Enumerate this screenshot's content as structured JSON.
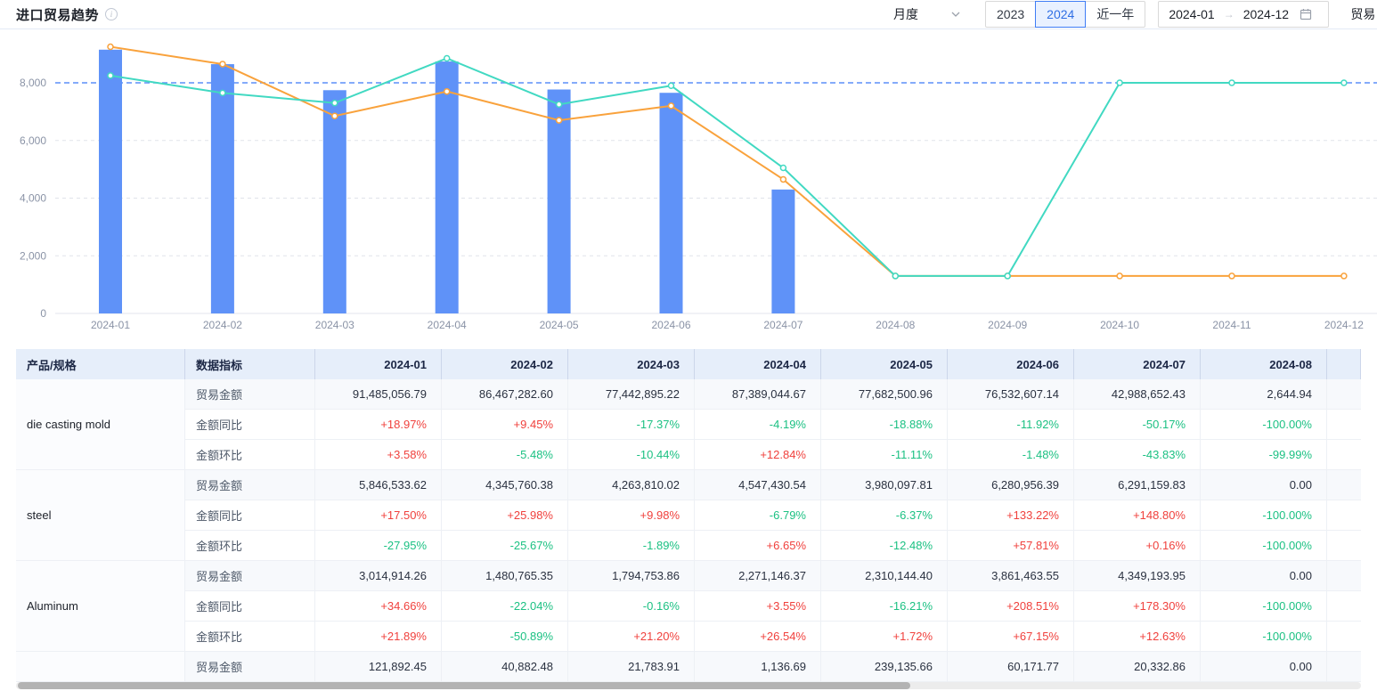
{
  "header": {
    "title": "进口贸易趋势",
    "period_select": {
      "value": "月度"
    },
    "year_buttons": [
      {
        "label": "2023",
        "selected": false
      },
      {
        "label": "2024",
        "selected": true
      },
      {
        "label": "近一年",
        "selected": false
      }
    ],
    "date_range": {
      "start": "2024-01",
      "separator": "→",
      "end": "2024-12"
    },
    "truncated_control": "贸易"
  },
  "chart_data": {
    "type": "bar+line",
    "x": [
      "2024-01",
      "2024-02",
      "2024-03",
      "2024-04",
      "2024-05",
      "2024-06",
      "2024-07",
      "2024-08",
      "2024-09",
      "2024-10",
      "2024-11",
      "2024-12"
    ],
    "series": [
      {
        "name": "bars",
        "type": "bar",
        "color": "#5f92f8",
        "values": [
          9149,
          8647,
          7744,
          8739,
          7768,
          7653,
          4299,
          0,
          0,
          0,
          0,
          0
        ]
      },
      {
        "name": "line_orange",
        "type": "line",
        "color": "#f9a23c",
        "values": [
          9250,
          8650,
          6850,
          7700,
          6700,
          7200,
          4650,
          1300,
          1300,
          1300,
          1300,
          1300
        ]
      },
      {
        "name": "line_teal",
        "type": "line",
        "color": "#41d9c2",
        "values": [
          8250,
          7650,
          7300,
          8850,
          7250,
          7900,
          5050,
          1300,
          1300,
          8000,
          8000,
          8000
        ]
      }
    ],
    "yticks": [
      {
        "v": 0,
        "label": "0"
      },
      {
        "v": 2000,
        "label": "2,000"
      },
      {
        "v": 4000,
        "label": "4,000"
      },
      {
        "v": 6000,
        "label": "6,000"
      },
      {
        "v": 8000,
        "label": "8,000"
      }
    ],
    "ref_line": {
      "value": 8000,
      "color": "#5b8ff9",
      "style": "dashed"
    },
    "ylim": [
      0,
      9600
    ],
    "grid": true,
    "legend": "none"
  },
  "table": {
    "columns": [
      "产品/规格",
      "数据指标",
      "2024-01",
      "2024-02",
      "2024-03",
      "2024-04",
      "2024-05",
      "2024-06",
      "2024-07",
      "2024-08"
    ],
    "row_labels": {
      "amount": "贸易金额",
      "yoy": "金额同比",
      "mom": "金额环比"
    },
    "groups": [
      {
        "product": "die casting mold",
        "amount": [
          "91,485,056.79",
          "86,467,282.60",
          "77,442,895.22",
          "87,389,044.67",
          "77,682,500.96",
          "76,532,607.14",
          "42,988,652.43",
          "2,644.94"
        ],
        "yoy": [
          "+18.97%",
          "+9.45%",
          "-17.37%",
          "-4.19%",
          "-18.88%",
          "-11.92%",
          "-50.17%",
          "-100.00%"
        ],
        "mom": [
          "+3.58%",
          "-5.48%",
          "-10.44%",
          "+12.84%",
          "-11.11%",
          "-1.48%",
          "-43.83%",
          "-99.99%"
        ]
      },
      {
        "product": "steel",
        "amount": [
          "5,846,533.62",
          "4,345,760.38",
          "4,263,810.02",
          "4,547,430.54",
          "3,980,097.81",
          "6,280,956.39",
          "6,291,159.83",
          "0.00"
        ],
        "yoy": [
          "+17.50%",
          "+25.98%",
          "+9.98%",
          "-6.79%",
          "-6.37%",
          "+133.22%",
          "+148.80%",
          "-100.00%"
        ],
        "mom": [
          "-27.95%",
          "-25.67%",
          "-1.89%",
          "+6.65%",
          "-12.48%",
          "+57.81%",
          "+0.16%",
          "-100.00%"
        ]
      },
      {
        "product": "Aluminum",
        "amount": [
          "3,014,914.26",
          "1,480,765.35",
          "1,794,753.86",
          "2,271,146.37",
          "2,310,144.40",
          "3,861,463.55",
          "4,349,193.95",
          "0.00"
        ],
        "yoy": [
          "+34.66%",
          "-22.04%",
          "-0.16%",
          "+3.55%",
          "-16.21%",
          "+208.51%",
          "+178.30%",
          "-100.00%"
        ],
        "mom": [
          "+21.89%",
          "-50.89%",
          "+21.20%",
          "+26.54%",
          "+1.72%",
          "+67.15%",
          "+12.63%",
          "-100.00%"
        ]
      },
      {
        "product": "",
        "partial": true,
        "amount": [
          "121,892.45",
          "40,882.48",
          "21,783.91",
          "1,136.69",
          "239,135.66",
          "60,171.77",
          "20,332.86",
          "0.00"
        ]
      }
    ]
  },
  "colors": {
    "bar": "#5f92f8",
    "line_orange": "#f9a23c",
    "line_teal": "#41d9c2",
    "ref_line": "#5b8ff9",
    "percent_up_red": "#f0413d",
    "percent_down_green": "#1cc183",
    "header_bg": "#e6eefa",
    "selected_button_blue": "#2f6fe4"
  }
}
